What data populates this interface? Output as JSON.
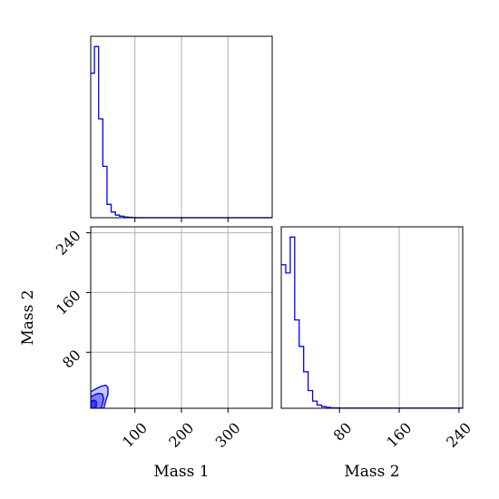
{
  "chart_data": [
    {
      "type": "histogram",
      "panel": "top-left",
      "variable": "Mass 1",
      "xlim": [
        5,
        395
      ],
      "grid": true,
      "x_ticks": [
        100,
        200,
        300
      ],
      "show_tick_labels": false,
      "bin_edges": [
        5,
        13,
        22,
        31,
        40,
        49,
        58,
        67,
        76,
        85,
        94,
        103,
        395
      ],
      "density": [
        0.38,
        0.45,
        0.26,
        0.135,
        0.035,
        0.015,
        0.007,
        0.004,
        0.002,
        0.001,
        0.0005,
        0.0002
      ],
      "color": "#0000ff"
    },
    {
      "type": "contour",
      "panel": "bottom-left",
      "xlabel": "Mass 1",
      "ylabel": "Mass 2",
      "xlim": [
        5,
        395
      ],
      "ylim": [
        5,
        248
      ],
      "x_ticks": [
        100,
        200,
        300
      ],
      "y_ticks": [
        80,
        160,
        240
      ],
      "grid": true,
      "levels": [
        {
          "level": "outer",
          "fill": "#c8c8ff",
          "outline": [
            [
              5,
              27
            ],
            [
              16,
              31
            ],
            [
              26,
              34
            ],
            [
              37,
              36
            ],
            [
              42,
              33
            ],
            [
              42,
              24
            ],
            [
              37,
              14
            ],
            [
              33,
              5
            ],
            [
              5,
              5
            ]
          ]
        },
        {
          "level": "middle",
          "fill": "#8080ff",
          "outline": [
            [
              5,
              20
            ],
            [
              13,
              23
            ],
            [
              22,
              25
            ],
            [
              30,
              24
            ],
            [
              33,
              18
            ],
            [
              30,
              10
            ],
            [
              27,
              5
            ],
            [
              5,
              5
            ]
          ]
        },
        {
          "level": "inner",
          "fill": "#3838ff",
          "outline": [
            [
              5,
              14
            ],
            [
              12,
              16
            ],
            [
              17,
              14
            ],
            [
              17,
              8
            ],
            [
              15,
              5
            ],
            [
              5,
              5
            ]
          ]
        }
      ],
      "color": "#0000ff"
    },
    {
      "type": "histogram",
      "panel": "bottom-right",
      "xlabel": "Mass 2",
      "xlim": [
        2,
        245
      ],
      "x_ticks": [
        80,
        160,
        240
      ],
      "grid": true,
      "bin_edges": [
        2,
        8,
        14,
        20,
        26,
        32,
        38,
        44,
        50,
        56,
        62,
        68,
        80,
        245
      ],
      "density": [
        0.26,
        0.245,
        0.31,
        0.16,
        0.112,
        0.066,
        0.032,
        0.013,
        0.006,
        0.003,
        0.0015,
        0.0008,
        0.0003
      ],
      "color": "#0000ff"
    }
  ]
}
